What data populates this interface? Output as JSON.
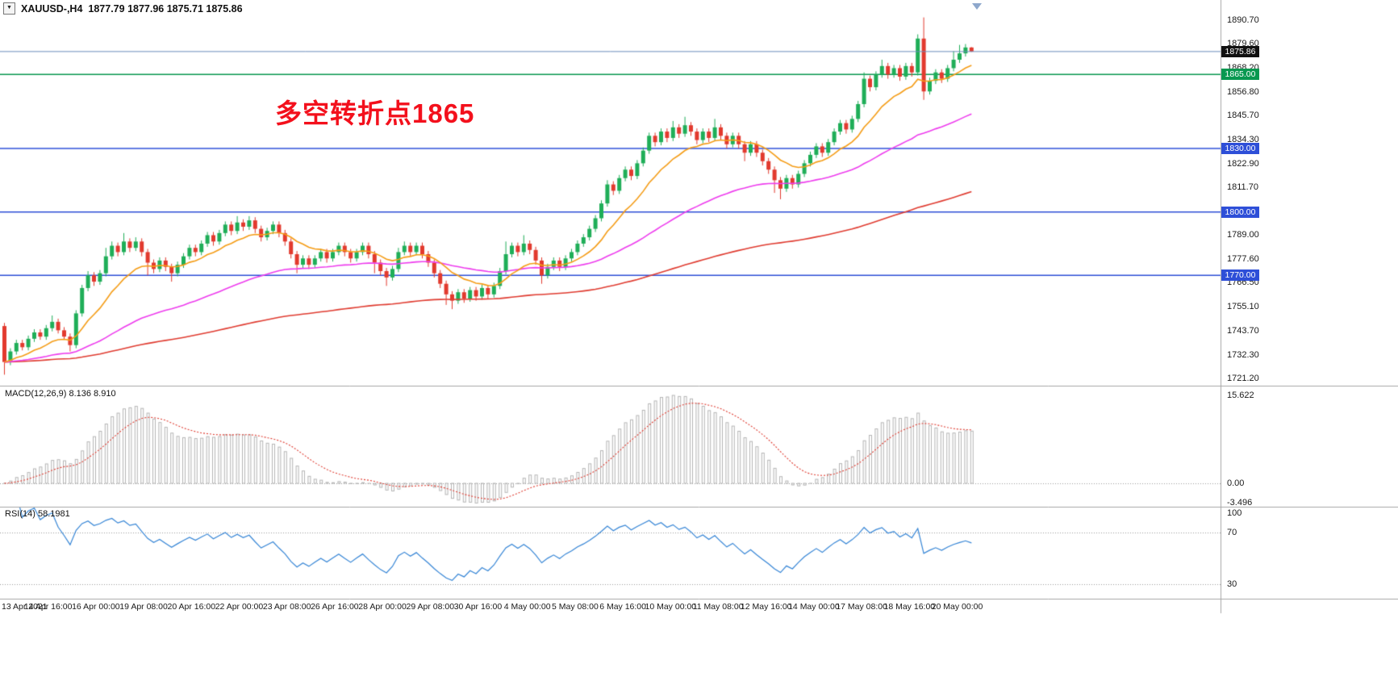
{
  "header": {
    "dropdown_icon": "▼",
    "symbol_period": "XAUUSD-,H4",
    "ohlc": "1877.79 1877.96 1875.71 1875.86"
  },
  "annotation": {
    "text": "多空转折点1865",
    "color": "#f3101c"
  },
  "macd_panel": {
    "label": "MACD(12,26,9) 8.136 8.910",
    "scale": [
      {
        "text": "15.622",
        "v": 15.622
      },
      {
        "text": "0.00",
        "v": 0
      },
      {
        "text": "-3.496",
        "v": -3.496
      }
    ]
  },
  "rsi_panel": {
    "label": "RSI(14) 58.1981",
    "scale": [
      {
        "text": "100",
        "v": 100
      },
      {
        "text": "70",
        "v": 70
      },
      {
        "text": "30",
        "v": 30
      }
    ]
  },
  "price_axis": {
    "tick_labels": [
      "1890.70",
      "1879.60",
      "1868.20",
      "1856.80",
      "1845.70",
      "1834.30",
      "1822.90",
      "1811.70",
      "1800.00",
      "1789.00",
      "1777.60",
      "1766.50",
      "1755.10",
      "1743.70",
      "1732.30",
      "1721.20"
    ],
    "current_badge": {
      "text": "1875.86",
      "price": 1875.86,
      "bg": "#111111"
    },
    "level_badges": [
      {
        "text": "1865.00",
        "price": 1865.0,
        "bg": "#089850"
      },
      {
        "text": "1830.00",
        "price": 1830.0,
        "bg": "#2e4fd8"
      },
      {
        "text": "1800.00",
        "price": 1800.0,
        "bg": "#2e4fd8"
      },
      {
        "text": "1770.00",
        "price": 1770.0,
        "bg": "#2e4fd8"
      }
    ]
  },
  "colors": {
    "candle_up": "#1fae58",
    "candle_down": "#e23a2e",
    "ma_fast": "#f59d17",
    "ma_mid": "#ee3cee",
    "ma_slow": "#e03c31",
    "macd_bar": "#b5b5b5",
    "macd_signal": "#e03c31",
    "rsi_line": "#3585d6",
    "current_price_line": "#6b8cba",
    "separator": "#a6a6a6"
  },
  "chart_data": {
    "type": "candlestick",
    "symbol": "XAUUSD-",
    "timeframe": "H4",
    "title_values": {
      "open": 1877.79,
      "high": 1877.96,
      "low": 1875.71,
      "close": 1875.86
    },
    "current_price": 1875.86,
    "y_ticks": [
      1890.7,
      1879.6,
      1868.2,
      1856.8,
      1845.7,
      1834.3,
      1822.9,
      1811.7,
      1800.0,
      1789.0,
      1777.6,
      1766.5,
      1755.1,
      1743.7,
      1732.3,
      1721.2
    ],
    "x_labels": [
      "13 Apr 2021",
      "14 Apr 16:00",
      "16 Apr 00:00",
      "19 Apr 08:00",
      "20 Apr 16:00",
      "22 Apr 00:00",
      "23 Apr 08:00",
      "26 Apr 16:00",
      "28 Apr 00:00",
      "29 Apr 08:00",
      "30 Apr 16:00",
      "4 May 00:00",
      "5 May 08:00",
      "6 May 16:00",
      "10 May 00:00",
      "11 May 08:00",
      "12 May 16:00",
      "14 May 00:00",
      "17 May 08:00",
      "18 May 16:00",
      "20 May 00:00"
    ],
    "horizontal_lines": [
      {
        "price": 1865.0,
        "color": "#089850",
        "width": 1.5
      },
      {
        "price": 1830.0,
        "color": "#2e4fd8",
        "width": 1.5
      },
      {
        "price": 1800.0,
        "color": "#2e4fd8",
        "width": 1.5
      },
      {
        "price": 1770.0,
        "color": "#2e4fd8",
        "width": 1.5
      }
    ],
    "moving_averages": [
      {
        "name": "ma-fast",
        "method": "ema",
        "period": 12,
        "color": "#f59d17"
      },
      {
        "name": "ma-mid",
        "method": "ema",
        "period": 50,
        "color": "#ee3cee"
      },
      {
        "name": "ma-slow",
        "method": "ema",
        "period": 150,
        "color": "#e03c31"
      }
    ],
    "macd": {
      "fast": 12,
      "slow": 26,
      "signal": 9,
      "display_values": [
        8.136,
        8.91
      ],
      "axis_max": 15.622,
      "axis_min": -3.496
    },
    "rsi": {
      "period": 14,
      "display_value": 58.1981,
      "levels": [
        70,
        30
      ]
    },
    "candles_ohlc": [
      [
        1746,
        1747.5,
        1723,
        1729
      ],
      [
        1729,
        1735.5,
        1727.5,
        1734
      ],
      [
        1734,
        1739.5,
        1732.5,
        1738
      ],
      [
        1738,
        1739.5,
        1734.5,
        1736
      ],
      [
        1736,
        1741.5,
        1734.5,
        1740
      ],
      [
        1740,
        1744.5,
        1738.5,
        1743
      ],
      [
        1743,
        1744.5,
        1739.5,
        1741
      ],
      [
        1741,
        1746.5,
        1739.5,
        1745
      ],
      [
        1745,
        1751,
        1743.5,
        1748
      ],
      [
        1748,
        1749.5,
        1742.5,
        1744
      ],
      [
        1744,
        1745.5,
        1739.5,
        1741
      ],
      [
        1741,
        1742.5,
        1734,
        1737
      ],
      [
        1737,
        1753.5,
        1735.5,
        1752
      ],
      [
        1752,
        1765.5,
        1750.5,
        1764
      ],
      [
        1764,
        1772,
        1762.5,
        1770
      ],
      [
        1770,
        1771.5,
        1765,
        1767
      ],
      [
        1767,
        1772.5,
        1765.5,
        1771
      ],
      [
        1771,
        1783,
        1769.5,
        1779
      ],
      [
        1779,
        1786,
        1777.5,
        1784
      ],
      [
        1784,
        1785.5,
        1779,
        1781
      ],
      [
        1781,
        1790,
        1779.5,
        1786
      ],
      [
        1786,
        1787.5,
        1781,
        1783
      ],
      [
        1783,
        1788,
        1781.5,
        1786
      ],
      [
        1786,
        1787.5,
        1779,
        1781
      ],
      [
        1781,
        1782.5,
        1770,
        1776
      ],
      [
        1776,
        1777.5,
        1771,
        1773
      ],
      [
        1773,
        1778.5,
        1771.5,
        1777
      ],
      [
        1777,
        1778.5,
        1772,
        1774
      ],
      [
        1774,
        1775.5,
        1767,
        1771
      ],
      [
        1771,
        1776.5,
        1769.5,
        1775
      ],
      [
        1775,
        1780.5,
        1773.5,
        1779
      ],
      [
        1779,
        1784.5,
        1777.5,
        1783
      ],
      [
        1783,
        1784.5,
        1779,
        1781
      ],
      [
        1781,
        1786.5,
        1779.5,
        1785
      ],
      [
        1785,
        1790.5,
        1783.5,
        1789
      ],
      [
        1789,
        1790.5,
        1784,
        1786
      ],
      [
        1786,
        1791.5,
        1784.5,
        1790
      ],
      [
        1790,
        1795.5,
        1788.5,
        1794
      ],
      [
        1794,
        1795.5,
        1789,
        1791
      ],
      [
        1791,
        1798,
        1789.5,
        1795
      ],
      [
        1795,
        1796.5,
        1791,
        1793
      ],
      [
        1793,
        1798,
        1791.5,
        1796
      ],
      [
        1796,
        1797.5,
        1790,
        1792
      ],
      [
        1792,
        1793.5,
        1786,
        1788
      ],
      [
        1788,
        1792.5,
        1786.5,
        1791
      ],
      [
        1791,
        1795.5,
        1789.5,
        1794
      ],
      [
        1794,
        1795.5,
        1788,
        1790
      ],
      [
        1790,
        1791.5,
        1784,
        1786
      ],
      [
        1786,
        1787.5,
        1778,
        1780
      ],
      [
        1780,
        1781.5,
        1771,
        1775
      ],
      [
        1775,
        1779.5,
        1773.5,
        1778
      ],
      [
        1778,
        1779.5,
        1773,
        1775
      ],
      [
        1775,
        1779.5,
        1773.5,
        1778
      ],
      [
        1778,
        1782.5,
        1776.5,
        1781
      ],
      [
        1781,
        1782.5,
        1776,
        1778
      ],
      [
        1778,
        1782.5,
        1776.5,
        1781
      ],
      [
        1781,
        1785.5,
        1779.5,
        1784
      ],
      [
        1784,
        1785.5,
        1779,
        1781
      ],
      [
        1781,
        1782.5,
        1776,
        1778
      ],
      [
        1778,
        1782.5,
        1776.5,
        1781
      ],
      [
        1781,
        1785.5,
        1779.5,
        1784
      ],
      [
        1784,
        1785.5,
        1778,
        1780
      ],
      [
        1780,
        1781.5,
        1771,
        1776
      ],
      [
        1776,
        1777.5,
        1770,
        1772
      ],
      [
        1772,
        1773.5,
        1765,
        1769
      ],
      [
        1769,
        1774.5,
        1767.5,
        1773
      ],
      [
        1773,
        1783,
        1771.5,
        1781
      ],
      [
        1781,
        1786,
        1779.5,
        1784
      ],
      [
        1784,
        1785.5,
        1779,
        1781
      ],
      [
        1781,
        1785.5,
        1779.5,
        1784
      ],
      [
        1784,
        1785.5,
        1778,
        1780
      ],
      [
        1780,
        1781.5,
        1774,
        1776
      ],
      [
        1776,
        1777.5,
        1769,
        1771
      ],
      [
        1771,
        1772.5,
        1764,
        1766
      ],
      [
        1766,
        1767.5,
        1756,
        1761
      ],
      [
        1761,
        1762.5,
        1754,
        1758
      ],
      [
        1758,
        1763.5,
        1756.5,
        1762
      ],
      [
        1762,
        1763.5,
        1757,
        1759
      ],
      [
        1759,
        1764.5,
        1757.5,
        1763
      ],
      [
        1763,
        1764.5,
        1758,
        1760
      ],
      [
        1760,
        1765.5,
        1758.5,
        1764
      ],
      [
        1764,
        1765.5,
        1759,
        1761
      ],
      [
        1761,
        1766.5,
        1759.5,
        1765
      ],
      [
        1765,
        1773.5,
        1763.5,
        1772
      ],
      [
        1772,
        1786,
        1770.5,
        1780
      ],
      [
        1780,
        1785.5,
        1778.5,
        1784
      ],
      [
        1784,
        1785.5,
        1779,
        1781
      ],
      [
        1781,
        1789,
        1779.5,
        1785
      ],
      [
        1785,
        1786.5,
        1780,
        1782
      ],
      [
        1782,
        1783.5,
        1775,
        1777
      ],
      [
        1777,
        1778.5,
        1766,
        1770
      ],
      [
        1770,
        1775.5,
        1768.5,
        1774
      ],
      [
        1774,
        1778.5,
        1772.5,
        1777
      ],
      [
        1777,
        1778.5,
        1772,
        1774
      ],
      [
        1774,
        1779.5,
        1772.5,
        1778
      ],
      [
        1778,
        1782.5,
        1776.5,
        1781
      ],
      [
        1781,
        1786.5,
        1779.5,
        1785
      ],
      [
        1785,
        1789.5,
        1783.5,
        1788
      ],
      [
        1788,
        1793.5,
        1786.5,
        1792
      ],
      [
        1792,
        1798.5,
        1790.5,
        1797
      ],
      [
        1797,
        1805.5,
        1795.5,
        1804
      ],
      [
        1804,
        1815,
        1802.5,
        1813
      ],
      [
        1813,
        1814.5,
        1808,
        1810
      ],
      [
        1810,
        1817.5,
        1808.5,
        1816
      ],
      [
        1816,
        1821.5,
        1814.5,
        1820
      ],
      [
        1820,
        1821.5,
        1815,
        1817
      ],
      [
        1817,
        1824.5,
        1815.5,
        1823
      ],
      [
        1823,
        1830.5,
        1821.5,
        1829
      ],
      [
        1829,
        1837.5,
        1827.5,
        1836
      ],
      [
        1836,
        1837.5,
        1831,
        1833
      ],
      [
        1833,
        1839.5,
        1831.5,
        1838
      ],
      [
        1838,
        1839.5,
        1833,
        1835
      ],
      [
        1835,
        1843,
        1833.5,
        1840
      ],
      [
        1840,
        1841.5,
        1835,
        1837
      ],
      [
        1837,
        1845,
        1835.5,
        1841
      ],
      [
        1841,
        1842.5,
        1836,
        1838
      ],
      [
        1838,
        1839.5,
        1832,
        1834
      ],
      [
        1834,
        1839.5,
        1832.5,
        1838
      ],
      [
        1838,
        1839.5,
        1833,
        1835
      ],
      [
        1835,
        1844,
        1833.5,
        1840
      ],
      [
        1840,
        1841.5,
        1834,
        1836
      ],
      [
        1836,
        1837.5,
        1830,
        1832
      ],
      [
        1832,
        1837.5,
        1830.5,
        1836
      ],
      [
        1836,
        1837.5,
        1830,
        1832
      ],
      [
        1832,
        1833.5,
        1824,
        1828
      ],
      [
        1828,
        1833.5,
        1826.5,
        1832
      ],
      [
        1832,
        1833.5,
        1826,
        1828
      ],
      [
        1828,
        1829.5,
        1822,
        1824
      ],
      [
        1824,
        1825.5,
        1818,
        1820
      ],
      [
        1820,
        1821.5,
        1809,
        1815
      ],
      [
        1815,
        1816.5,
        1806,
        1811
      ],
      [
        1811,
        1817.5,
        1809.5,
        1816
      ],
      [
        1816,
        1817.5,
        1811,
        1813
      ],
      [
        1813,
        1819.5,
        1811.5,
        1818
      ],
      [
        1818,
        1824.5,
        1816.5,
        1823
      ],
      [
        1823,
        1828.5,
        1821.5,
        1827
      ],
      [
        1827,
        1832.5,
        1825.5,
        1831
      ],
      [
        1831,
        1832.5,
        1826,
        1828
      ],
      [
        1828,
        1834.5,
        1826.5,
        1833
      ],
      [
        1833,
        1839.5,
        1831.5,
        1838
      ],
      [
        1838,
        1843.5,
        1836.5,
        1842
      ],
      [
        1842,
        1843.5,
        1837,
        1839
      ],
      [
        1839,
        1845.5,
        1837.5,
        1844
      ],
      [
        1844,
        1852.5,
        1842.5,
        1851
      ],
      [
        1851,
        1866,
        1849.5,
        1863
      ],
      [
        1863,
        1864.5,
        1857,
        1859
      ],
      [
        1859,
        1866.5,
        1857.5,
        1865
      ],
      [
        1865,
        1872,
        1863.5,
        1869
      ],
      [
        1869,
        1870.5,
        1863,
        1865
      ],
      [
        1865,
        1869.5,
        1863.5,
        1868
      ],
      [
        1868,
        1869.5,
        1862,
        1864
      ],
      [
        1864,
        1870.5,
        1862.5,
        1869
      ],
      [
        1869,
        1870.5,
        1864,
        1866
      ],
      [
        1866,
        1884,
        1864.5,
        1882
      ],
      [
        1882,
        1892,
        1853,
        1857
      ],
      [
        1857,
        1863.5,
        1855.5,
        1862
      ],
      [
        1862,
        1867.5,
        1860.5,
        1866
      ],
      [
        1866,
        1867.5,
        1861,
        1863
      ],
      [
        1863,
        1869.5,
        1861.5,
        1868
      ],
      [
        1868,
        1876,
        1866.5,
        1872
      ],
      [
        1872,
        1879,
        1870.5,
        1875
      ],
      [
        1875,
        1879.4,
        1873.5,
        1877.8
      ],
      [
        1877.79,
        1877.96,
        1875.71,
        1875.86
      ]
    ]
  }
}
